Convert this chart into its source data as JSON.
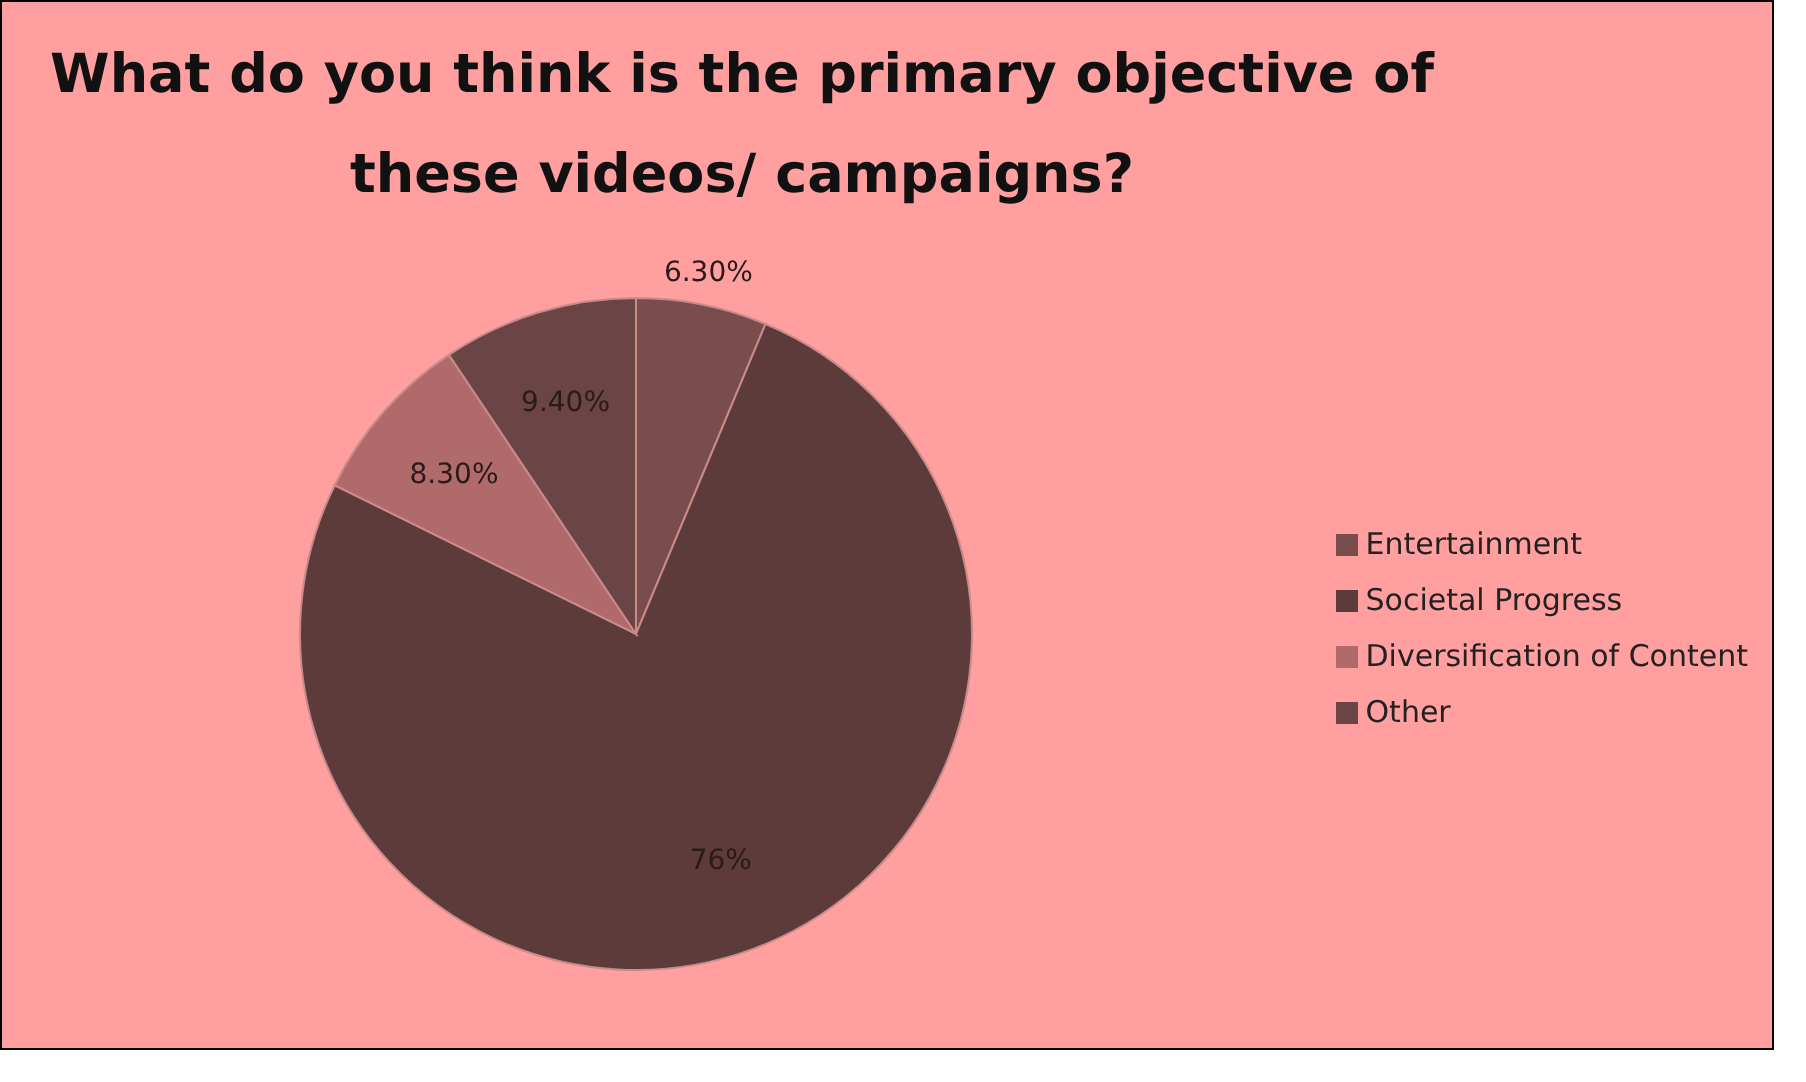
{
  "chart_data": {
    "type": "pie",
    "title": "What do you think is the primary objective of these videos/ campaigns?",
    "categories": [
      "Entertainment",
      "Societal Progress",
      "Diversification of Content",
      "Other"
    ],
    "values": [
      6.3,
      76,
      8.3,
      9.4
    ],
    "value_labels": [
      "6.30%",
      "76%",
      "8.30%",
      "9.40%"
    ],
    "colors": [
      "#7a4d4d",
      "#5e3b3b",
      "#b06a6a",
      "#6b4545"
    ],
    "legend": "right"
  }
}
